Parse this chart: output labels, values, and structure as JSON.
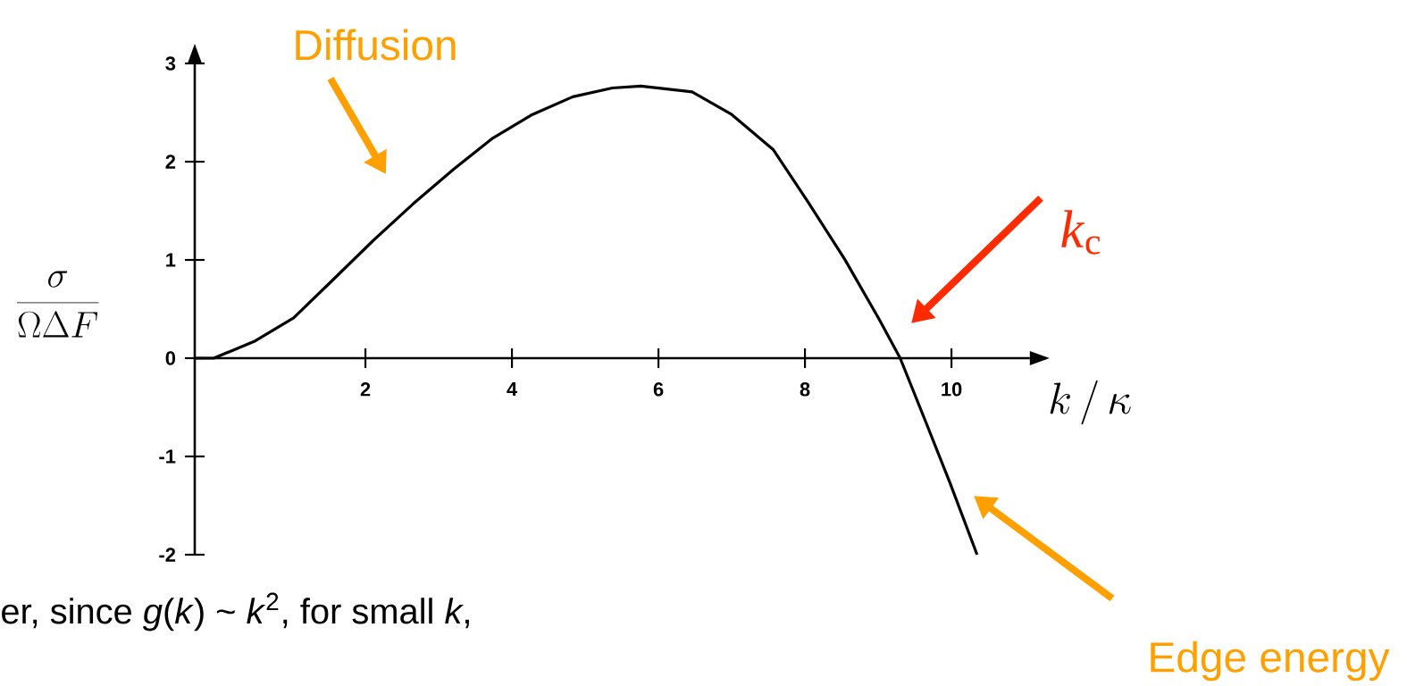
{
  "chart_data": {
    "type": "line",
    "xlabel": "k\\,/\\,\\kappa",
    "ylabel": "\\frac{\\sigma}{\\Omega\\Delta F}",
    "xlim": [
      -0.33,
      11.07
    ],
    "ylim": [
      -2,
      3
    ],
    "xticks": [
      2,
      4,
      6,
      8,
      10
    ],
    "yticks": [
      -2,
      -1,
      0,
      1,
      2,
      3
    ],
    "series": [
      {
        "color": "#000000",
        "x": [
          -0.33,
          -0.07,
          0.48,
          1.02,
          1.56,
          2.11,
          2.65,
          3.2,
          3.74,
          4.28,
          4.83,
          5.37,
          5.76,
          6.46,
          7.0,
          7.57,
          8.05,
          8.54,
          9.01,
          9.3,
          9.65,
          9.98,
          10.35
        ],
        "values": [
          0,
          0,
          0.17,
          0.41,
          0.8,
          1.2,
          1.57,
          1.92,
          2.24,
          2.48,
          2.66,
          2.75,
          2.77,
          2.71,
          2.48,
          2.12,
          1.58,
          1.01,
          0.4,
          0,
          -0.65,
          -1.27,
          -2.0
        ]
      }
    ],
    "annotations": [
      "Diffusion",
      "*k*$_{c}$",
      "Edge energy",
      "er, since *g*(*k*) ~ *k*$^{2}$, for small *k*,"
    ]
  }
}
